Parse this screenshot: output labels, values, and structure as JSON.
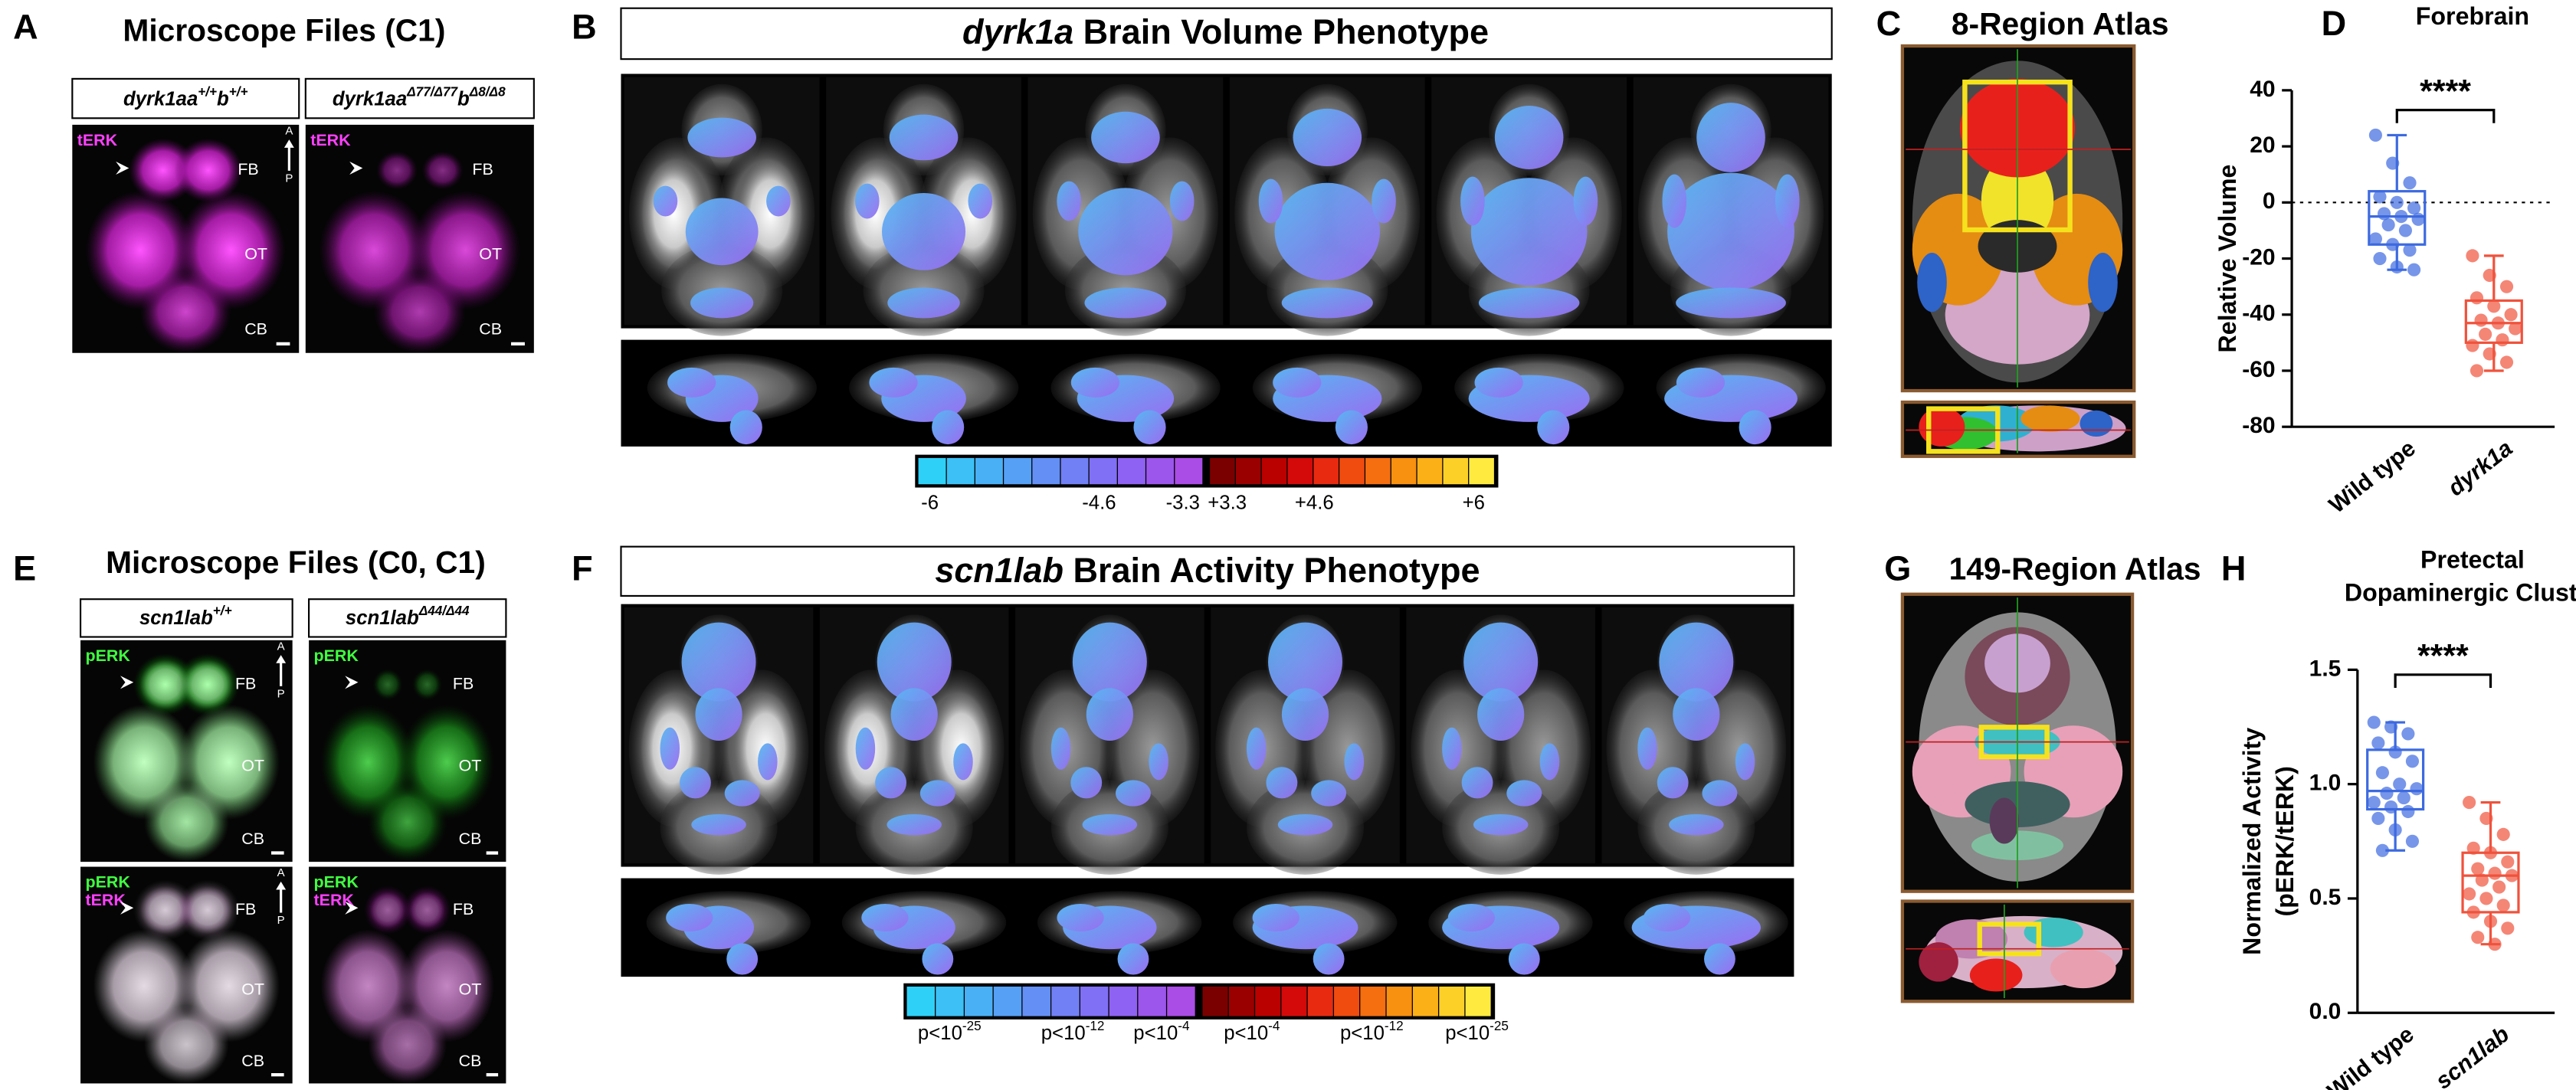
{
  "panels": {
    "A": {
      "letter": "A",
      "title": "Microscope Files (C1)",
      "genotypes": [
        [
          "dyrk1aa",
          "+/+",
          "b",
          "+/+"
        ],
        [
          "dyrk1aa",
          "Δ77/Δ77",
          "b",
          "Δ8/Δ8"
        ]
      ],
      "image_labels": {
        "stain": "tERK",
        "forebrain": "FB",
        "optic_tectum": "OT",
        "cerebellum": "CB",
        "anterior": "A",
        "posterior": "P"
      }
    },
    "B": {
      "letter": "B",
      "title": [
        "dyrk1a",
        " Brain Volume Phenotype"
      ],
      "colorbar": {
        "negative_colors": [
          "#2fd0f7",
          "#3cc0f6",
          "#49b0f5",
          "#56a0f5",
          "#6490f5",
          "#7280f5",
          "#8070f5",
          "#8e62f2",
          "#9c56ec",
          "#aa4ce6"
        ],
        "positive_colors": [
          "#7a0000",
          "#9a0000",
          "#bb0000",
          "#d40a0a",
          "#e82a10",
          "#f04c10",
          "#f56e10",
          "#f89010",
          "#fbb018",
          "#fdd028",
          "#ffeb40"
        ],
        "labels": [
          "-6",
          "-4.6",
          "-3.3",
          "+3.3",
          "+4.6",
          "+6"
        ]
      }
    },
    "C": {
      "letter": "C",
      "title": "8-Region Atlas"
    },
    "E": {
      "letter": "E",
      "title": "Microscope Files (C0, C1)",
      "genotypes": [
        [
          "scn1lab",
          "+/+"
        ],
        [
          "scn1lab",
          "Δ44/Δ44"
        ]
      ],
      "image_labels": {
        "stain_1": "pERK",
        "stain_2": "tERK",
        "forebrain": "FB",
        "optic_tectum": "OT",
        "cerebellum": "CB",
        "anterior": "A",
        "posterior": "P"
      }
    },
    "F": {
      "letter": "F",
      "title": [
        "scn1lab",
        " Brain Activity Phenotype"
      ],
      "colorbar": {
        "negative_colors": [
          "#2fd0f7",
          "#3cc0f6",
          "#49b0f5",
          "#56a0f5",
          "#6490f5",
          "#7280f5",
          "#8070f5",
          "#8e62f2",
          "#9c56ec",
          "#aa4ce6"
        ],
        "positive_colors": [
          "#7a0000",
          "#9a0000",
          "#bb0000",
          "#d40a0a",
          "#e82a10",
          "#f04c10",
          "#f56e10",
          "#f89010",
          "#fbb018",
          "#fdd028",
          "#ffeb40"
        ],
        "labels": [
          {
            "base": "p<10",
            "exponent": "-25"
          },
          {
            "base": "p<10",
            "exponent": "-12"
          },
          {
            "base": "p<10",
            "exponent": "-4"
          },
          {
            "base": "p<10",
            "exponent": "-4"
          },
          {
            "base": "p<10",
            "exponent": "-12"
          },
          {
            "base": "p<10",
            "exponent": "-25"
          }
        ]
      }
    },
    "G": {
      "letter": "G",
      "title": "149-Region Atlas"
    }
  },
  "chart_data": [
    {
      "type": "box",
      "panel": "D",
      "title": "Forebrain",
      "ylabel": [
        "Relative Volume"
      ],
      "categories": [
        "Wild type",
        "dyrk1a"
      ],
      "ylim": [
        -80,
        40
      ],
      "yticks": [
        -80,
        -60,
        -40,
        -20,
        0,
        20,
        40
      ],
      "hline": 0,
      "significance": "****",
      "boxes": [
        {
          "color": "#3d6ae0",
          "whislo": -24,
          "q1": -15,
          "med": -5,
          "q3": 4,
          "whishi": 24,
          "points": [
            24,
            14,
            7,
            2,
            0,
            -2,
            -4,
            -5,
            -6,
            -8,
            -10,
            -13,
            -15,
            -17,
            -20,
            -23,
            -24
          ]
        },
        {
          "color": "#f0523c",
          "whislo": -60,
          "q1": -50,
          "med": -43,
          "q3": -35,
          "whishi": -19,
          "points": [
            -19,
            -26,
            -30,
            -34,
            -37,
            -40,
            -42,
            -43,
            -45,
            -47,
            -49,
            -51,
            -54,
            -57,
            -60
          ]
        }
      ]
    },
    {
      "type": "box",
      "panel": "H",
      "title": [
        "Pretectal",
        "Dopaminergic Cluster"
      ],
      "ylabel": [
        "Normalized Activity",
        "(pERK/tERK)"
      ],
      "categories": [
        "Wild type",
        "scn1lab"
      ],
      "ylim": [
        0,
        1.5
      ],
      "yticks": [
        {
          "value": 0,
          "label": "0.0"
        },
        0.5,
        {
          "value": 1,
          "label": "1.0"
        },
        1.5
      ],
      "significance": "****",
      "boxes": [
        {
          "color": "#3d6ae0",
          "whislo": 0.71,
          "q1": 0.89,
          "med": 0.97,
          "q3": 1.15,
          "whishi": 1.27,
          "points": [
            1.27,
            1.25,
            1.22,
            1.18,
            1.14,
            1.1,
            1.05,
            1.0,
            0.98,
            0.96,
            0.94,
            0.92,
            0.9,
            0.88,
            0.85,
            0.8,
            0.75,
            0.71
          ]
        },
        {
          "color": "#f0523c",
          "whislo": 0.3,
          "q1": 0.44,
          "med": 0.6,
          "q3": 0.7,
          "whishi": 0.92,
          "points": [
            0.92,
            0.85,
            0.78,
            0.72,
            0.7,
            0.66,
            0.63,
            0.61,
            0.6,
            0.58,
            0.55,
            0.52,
            0.5,
            0.47,
            0.44,
            0.4,
            0.37,
            0.33,
            0.3
          ]
        }
      ]
    }
  ]
}
